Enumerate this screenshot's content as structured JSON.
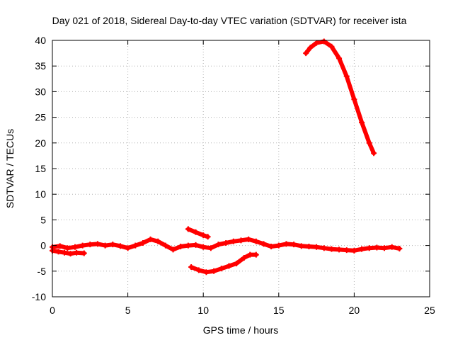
{
  "chart_data": {
    "type": "scatter",
    "title": "Day 021 of 2018, Sidereal Day-to-day VTEC variation (SDTVAR) for receiver ista",
    "xlabel": "GPS time / hours",
    "ylabel": "SDTVAR / TECUs",
    "xlim": [
      0,
      25
    ],
    "ylim": [
      -10,
      40
    ],
    "x_ticks": [
      0,
      5,
      10,
      15,
      20,
      25
    ],
    "y_ticks": [
      -10,
      -5,
      0,
      5,
      10,
      15,
      20,
      25,
      30,
      35,
      40
    ],
    "x_tick_labels": [
      "0",
      "5",
      "10",
      "15",
      "20",
      "25"
    ],
    "y_tick_labels": [
      "-10",
      "-5",
      "0",
      "5",
      "10",
      "15",
      "20",
      "25",
      "30",
      "35",
      "40"
    ],
    "grid": true,
    "color": "#ff0000",
    "series": [
      {
        "name": "track-main",
        "x": [
          0,
          0.5,
          1,
          1.5,
          2,
          2.5,
          3,
          3.5,
          4,
          4.5,
          5,
          5.5,
          6,
          6.5,
          7,
          7.5,
          8,
          8.5,
          9,
          9.5,
          10,
          10.5,
          11,
          11.5,
          12,
          12.5,
          13,
          13.5,
          14,
          14.5,
          15,
          15.5,
          16,
          16.5,
          17,
          17.5,
          18,
          18.5,
          19,
          19.5,
          20,
          20.5,
          21,
          21.5,
          22,
          22.5,
          23
        ],
        "y": [
          -0.3,
          -0.1,
          -0.5,
          -0.3,
          0,
          0.2,
          0.3,
          0,
          0.2,
          -0.1,
          -0.5,
          0,
          0.5,
          1.2,
          0.8,
          0,
          -0.8,
          -0.2,
          0,
          0.1,
          -0.3,
          -0.5,
          0.2,
          0.5,
          0.8,
          1,
          1.2,
          0.8,
          0.3,
          -0.2,
          0,
          0.3,
          0.2,
          -0.1,
          -0.2,
          -0.3,
          -0.5,
          -0.7,
          -0.8,
          -0.9,
          -1,
          -0.7,
          -0.5,
          -0.4,
          -0.5,
          -0.3,
          -0.6
        ]
      },
      {
        "name": "track-low-start",
        "x": [
          0,
          0.4,
          0.8,
          1.2,
          1.6,
          2.1
        ],
        "y": [
          -1,
          -1.2,
          -1.4,
          -1.6,
          -1.4,
          -1.5
        ]
      },
      {
        "name": "track-upper-short",
        "x": [
          9,
          9.5,
          10,
          10.3
        ],
        "y": [
          3.2,
          2.6,
          2,
          1.7
        ]
      },
      {
        "name": "track-lower-arc",
        "x": [
          9.2,
          9.7,
          10.2,
          10.7,
          11.2,
          11.7,
          12.2,
          12.7,
          13.1,
          13.5
        ],
        "y": [
          -4.2,
          -4.8,
          -5.2,
          -5,
          -4.5,
          -4,
          -3.5,
          -2.4,
          -1.8,
          -1.8
        ]
      },
      {
        "name": "track-high-arc",
        "x": [
          16.8,
          17.1,
          17.5,
          18,
          18.5,
          19,
          19.5,
          20,
          20.5,
          21,
          21.3
        ],
        "y": [
          37.5,
          38.6,
          39.5,
          39.8,
          38.8,
          36.5,
          33,
          28.5,
          24,
          20,
          18
        ]
      }
    ]
  }
}
